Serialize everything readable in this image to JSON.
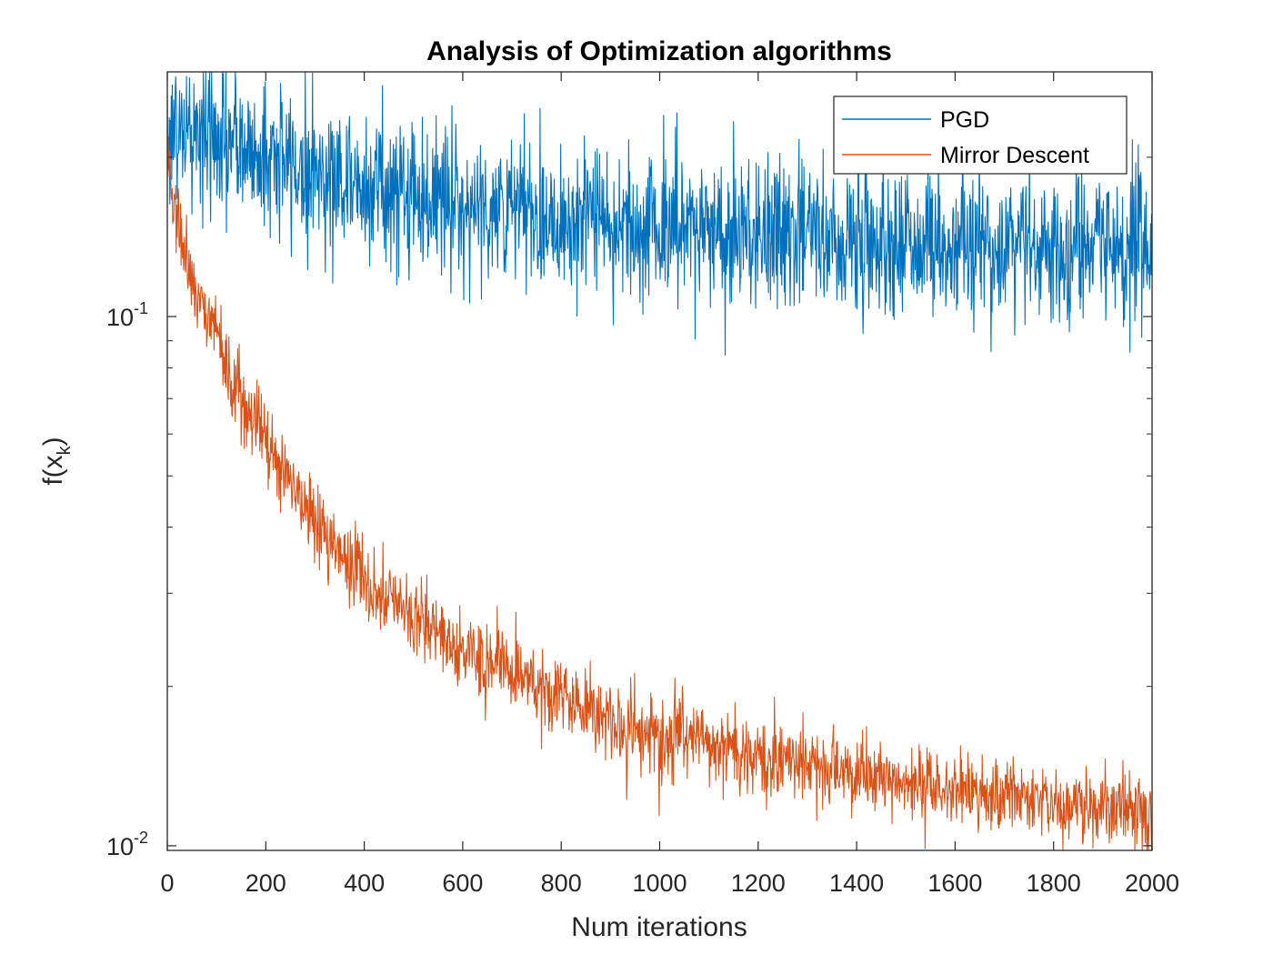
{
  "chart_data": {
    "type": "line",
    "title": "Analysis of Optimization algorithms",
    "xlabel": "Num iterations",
    "ylabel": {
      "base": "f(x",
      "subscript": "k",
      "close": ")"
    },
    "xlim": [
      0,
      2000
    ],
    "ylim": [
      0.0098,
      0.29
    ],
    "yscale": "log",
    "grid": false,
    "legend_position": "top-right",
    "x_ticks": [
      {
        "value": 0,
        "label": "0"
      },
      {
        "value": 200,
        "label": "200"
      },
      {
        "value": 400,
        "label": "400"
      },
      {
        "value": 600,
        "label": "600"
      },
      {
        "value": 800,
        "label": "800"
      },
      {
        "value": 1000,
        "label": "1000"
      },
      {
        "value": 1200,
        "label": "1200"
      },
      {
        "value": 1400,
        "label": "1400"
      },
      {
        "value": 1600,
        "label": "1600"
      },
      {
        "value": 1800,
        "label": "1800"
      },
      {
        "value": 2000,
        "label": "2000"
      }
    ],
    "y_ticks": [
      {
        "value": 0.1,
        "base": "10",
        "exponent": "-1"
      },
      {
        "value": 0.01,
        "base": "10",
        "exponent": "-2"
      }
    ],
    "y_minor_ticks": [
      0.02,
      0.03,
      0.04,
      0.05,
      0.06,
      0.07,
      0.08,
      0.09,
      0.2
    ],
    "series": [
      {
        "name": "PGD",
        "color": "#0072BD",
        "noise_amplitude": 0.33,
        "x": [
          0,
          50,
          100,
          150,
          200,
          300,
          400,
          500,
          600,
          700,
          800,
          900,
          1000,
          1100,
          1200,
          1300,
          1400,
          1500,
          1600,
          1700,
          1800,
          1900,
          2000
        ],
        "y": [
          0.225,
          0.222,
          0.215,
          0.208,
          0.2,
          0.188,
          0.178,
          0.17,
          0.163,
          0.158,
          0.154,
          0.151,
          0.148,
          0.146,
          0.144,
          0.142,
          0.14,
          0.138,
          0.137,
          0.136,
          0.135,
          0.134,
          0.133
        ]
      },
      {
        "name": "Mirror Descent",
        "color": "#D95319",
        "noise_amplitude": 0.17,
        "x": [
          0,
          2,
          10,
          20,
          40,
          60,
          100,
          150,
          200,
          250,
          300,
          400,
          500,
          600,
          700,
          800,
          900,
          1000,
          1200,
          1400,
          1600,
          1800,
          2000
        ],
        "y": [
          0.19,
          0.22,
          0.17,
          0.145,
          0.124,
          0.108,
          0.092,
          0.072,
          0.058,
          0.048,
          0.041,
          0.032,
          0.027,
          0.0235,
          0.021,
          0.019,
          0.0175,
          0.0162,
          0.0148,
          0.0136,
          0.0127,
          0.012,
          0.0114
        ]
      }
    ]
  }
}
